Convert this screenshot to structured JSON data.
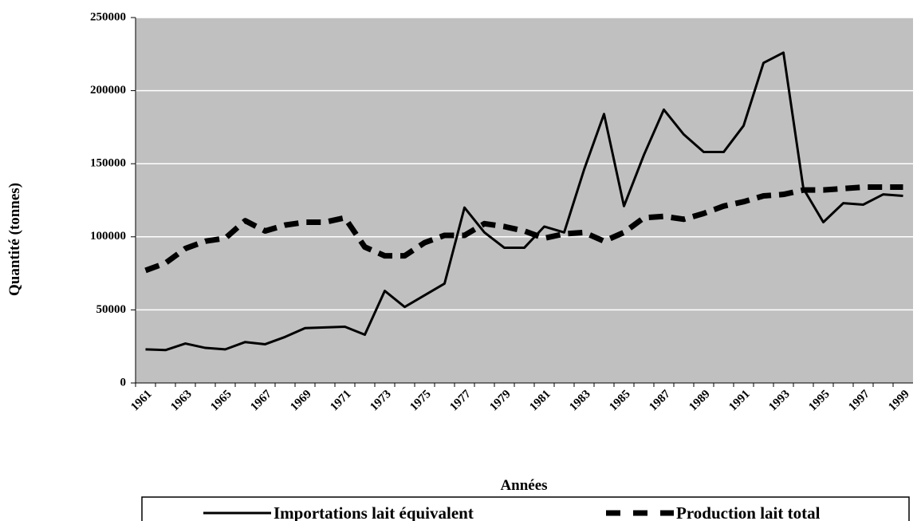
{
  "chart_data": {
    "type": "line",
    "x_label": "Années",
    "y_label": "Quantité (tonnes)",
    "categories": [
      "1961",
      null,
      "1963",
      null,
      "1965",
      null,
      "1967",
      null,
      "1969",
      null,
      "1971",
      null,
      "1973",
      null,
      "1975",
      null,
      "1977",
      null,
      "1979",
      null,
      "1981",
      null,
      "1983",
      null,
      "1985",
      null,
      "1987",
      null,
      "1989",
      null,
      "1991",
      null,
      "1993",
      null,
      "1995",
      null,
      "1997",
      null,
      "1999"
    ],
    "series": [
      {
        "name": "Importations lait équivalent",
        "color": "#000000",
        "dash": false,
        "values": [
          23000,
          22500,
          27000,
          24000,
          23000,
          28000,
          26500,
          31500,
          37500,
          38000,
          38500,
          33000,
          63000,
          52000,
          60000,
          68000,
          120000,
          103000,
          92500,
          92500,
          107000,
          103000,
          146000,
          184000,
          121000,
          156000,
          187000,
          170000,
          158000,
          158000,
          176000,
          219000,
          226000,
          133000,
          110000,
          123000,
          122000,
          129000,
          128000
        ]
      },
      {
        "name": "Production lait total",
        "color": "#000000",
        "dash": true,
        "values": [
          77000,
          82000,
          92000,
          97000,
          99000,
          111000,
          104000,
          108000,
          110000,
          110000,
          113000,
          93000,
          87000,
          87000,
          96000,
          101000,
          101000,
          109000,
          107000,
          104000,
          99000,
          102000,
          103000,
          97000,
          103000,
          113000,
          114000,
          112000,
          116000,
          121000,
          124000,
          128000,
          129000,
          132000,
          132000,
          133000,
          134000,
          134000,
          134000
        ]
      }
    ],
    "ylim": [
      0,
      250000
    ],
    "yticks": [
      0,
      50000,
      100000,
      150000,
      200000,
      250000
    ],
    "grid": true,
    "plot_background": "#c0c0c0",
    "legend": "bottom"
  }
}
